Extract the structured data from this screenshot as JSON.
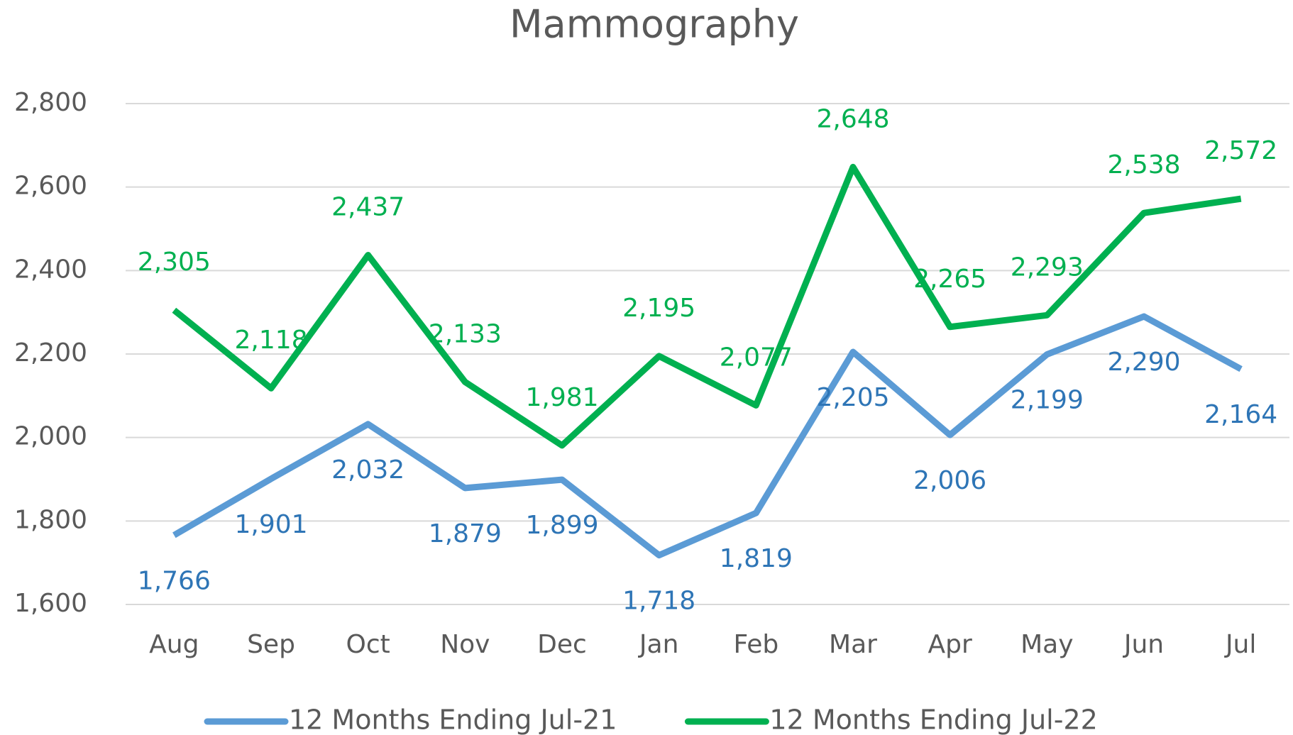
{
  "chart_data": {
    "type": "line",
    "title": "Mammography",
    "categories": [
      "Aug",
      "Sep",
      "Oct",
      "Nov",
      "Dec",
      "Jan",
      "Feb",
      "Mar",
      "Apr",
      "May",
      "Jun",
      "Jul"
    ],
    "series": [
      {
        "name": "12 Months Ending Jul-21",
        "color": "#5b9bd5",
        "label_color": "#2e75b6",
        "values": [
          1766,
          1901,
          2032,
          1879,
          1899,
          1718,
          1819,
          2205,
          2006,
          2199,
          2290,
          2164
        ],
        "value_labels": [
          "1,766",
          "1,901",
          "2,032",
          "1,879",
          "1,899",
          "1,718",
          "1,819",
          "2,205",
          "2,006",
          "2,199",
          "2,290",
          "2,164"
        ]
      },
      {
        "name": "12 Months Ending Jul-22",
        "color": "#00b050",
        "label_color": "#00b050",
        "values": [
          2305,
          2118,
          2437,
          2133,
          1981,
          2195,
          2077,
          2648,
          2265,
          2293,
          2538,
          2572
        ],
        "value_labels": [
          "2,305",
          "2,118",
          "2,437",
          "2,133",
          "1,981",
          "2,195",
          "2,077",
          "2,648",
          "2,265",
          "2,293",
          "2,538",
          "2,572"
        ]
      }
    ],
    "ylim": [
      1600,
      2800
    ],
    "yticks": [
      {
        "value": 1600,
        "label": "1,600"
      },
      {
        "value": 1800,
        "label": "1,800"
      },
      {
        "value": 2000,
        "label": "2,000"
      },
      {
        "value": 2200,
        "label": "2,200"
      },
      {
        "value": 2400,
        "label": "2,400"
      },
      {
        "value": 2600,
        "label": "2,600"
      },
      {
        "value": 2800,
        "label": "2,800"
      }
    ],
    "grid": true,
    "legend": "bottom"
  }
}
